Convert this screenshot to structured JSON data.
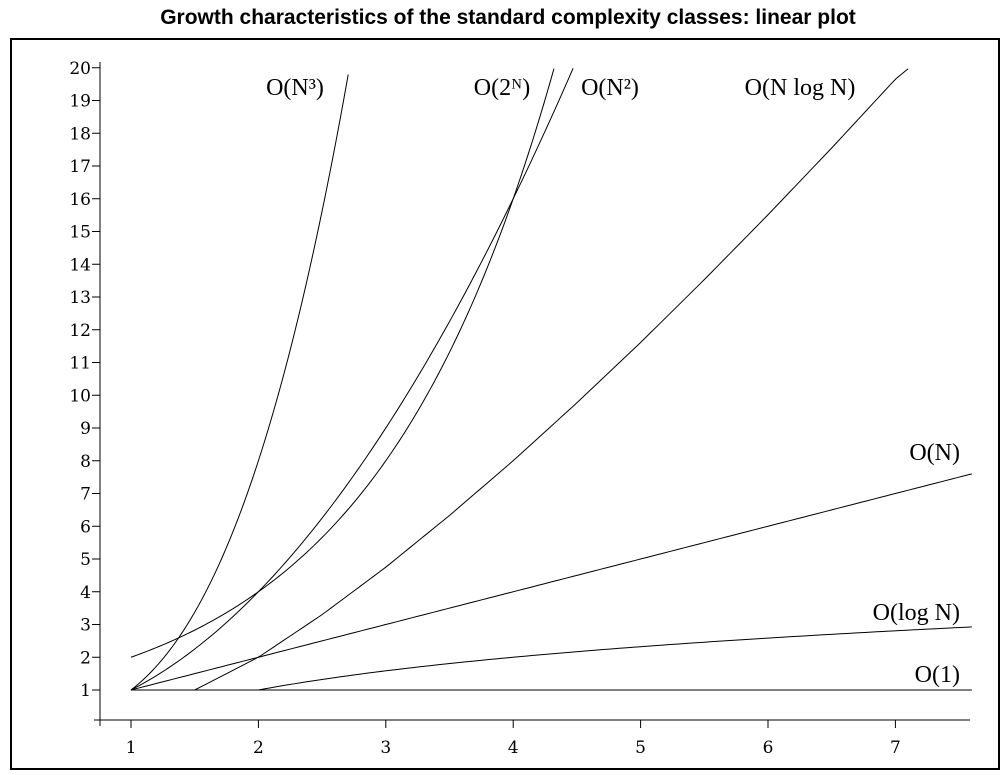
{
  "chart_data": {
    "type": "line",
    "title": "Growth characteristics of the standard complexity classes: linear plot",
    "xlabel": "",
    "ylabel": "",
    "xlim": [
      0.75,
      7.6
    ],
    "ylim": [
      0.0,
      20.0
    ],
    "x_ticks": [
      1,
      2,
      3,
      4,
      5,
      6,
      7
    ],
    "y_ticks": [
      1,
      2,
      3,
      4,
      5,
      6,
      7,
      8,
      9,
      10,
      11,
      12,
      13,
      14,
      15,
      16,
      17,
      18,
      19,
      20
    ],
    "grid": false,
    "legend": "none",
    "series": [
      {
        "name": "O(N³)",
        "x": [
          1,
          1.2,
          1.4,
          1.6,
          1.8,
          2.0,
          2.2,
          2.4,
          2.6,
          2.7
        ],
        "y": [
          1,
          1.73,
          2.74,
          4.1,
          5.83,
          8.0,
          10.65,
          13.82,
          17.58,
          19.68
        ]
      },
      {
        "name": "O(2ᴺ)",
        "x": [
          1,
          1.5,
          2,
          2.5,
          3,
          3.5,
          4,
          4.2,
          4.32
        ],
        "y": [
          2,
          2.83,
          4,
          5.66,
          8,
          11.31,
          16,
          18.38,
          19.97
        ]
      },
      {
        "name": "O(N²)",
        "x": [
          1,
          1.5,
          2,
          2.5,
          3,
          3.5,
          4,
          4.2,
          4.47
        ],
        "y": [
          1,
          2.25,
          4,
          6.25,
          9,
          12.25,
          16,
          17.64,
          19.98
        ]
      },
      {
        "name": "O(N log N)",
        "x": [
          1.5,
          2,
          2.5,
          3,
          3.5,
          4,
          4.5,
          5,
          5.5,
          6,
          6.5,
          7,
          7.1
        ],
        "y": [
          1.0,
          2.0,
          3.3,
          4.75,
          6.33,
          8.0,
          9.77,
          11.61,
          13.53,
          15.51,
          17.55,
          19.65,
          19.97
        ]
      },
      {
        "name": "O(N)",
        "x": [
          1,
          7.6
        ],
        "y": [
          1,
          7.6
        ]
      },
      {
        "name": "O(log N)",
        "x": [
          2,
          2.5,
          3,
          3.5,
          4,
          4.5,
          5,
          5.5,
          6,
          6.5,
          7,
          7.6
        ],
        "y": [
          1.0,
          1.32,
          1.58,
          1.81,
          2.0,
          2.17,
          2.32,
          2.46,
          2.58,
          2.7,
          2.81,
          2.93
        ]
      },
      {
        "name": "O(1)",
        "x": [
          1,
          7.6
        ],
        "y": [
          1,
          1
        ]
      }
    ]
  }
}
